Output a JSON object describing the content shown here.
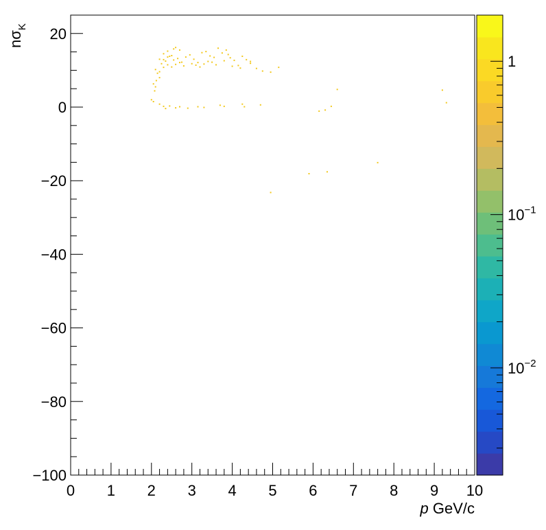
{
  "chart_data": {
    "type": "heatmap",
    "title": "",
    "xlabel": {
      "italic": "p",
      "rest": " GeV/c"
    },
    "ylabel": {
      "base": "nσ",
      "sub": "K"
    },
    "xlim": [
      0,
      10
    ],
    "ylim": [
      -100,
      25
    ],
    "x_ticks": [
      0,
      1,
      2,
      3,
      4,
      5,
      6,
      7,
      8,
      9,
      10
    ],
    "x_tick_labels": [
      "0",
      "1",
      "2",
      "3",
      "4",
      "5",
      "6",
      "7",
      "8",
      "9",
      "10"
    ],
    "y_ticks": [
      -100,
      -80,
      -60,
      -40,
      -20,
      0,
      20
    ],
    "y_tick_labels": [
      "−100",
      "−80",
      "−60",
      "−40",
      "−20",
      "0",
      "20"
    ],
    "z_scale": "log",
    "zlim": [
      0.002,
      2
    ],
    "colorbar_labels": [
      {
        "value": 1,
        "base": "1",
        "exp": ""
      },
      {
        "value": 0.1,
        "base": "10",
        "exp": "−1"
      },
      {
        "value": 0.01,
        "base": "10",
        "exp": "−2"
      }
    ],
    "colorbar_colors": [
      "#3b3ba8",
      "#2649c5",
      "#1858d8",
      "#1468e0",
      "#1679d9",
      "#1089d4",
      "#0a98d0",
      "#0fa6c8",
      "#1cb0b6",
      "#2fb8a4",
      "#4dbd8e",
      "#6ebf79",
      "#93c06a",
      "#b4bd62",
      "#d1b95c",
      "#e4b84e",
      "#f3be3b",
      "#f9cb2c",
      "#fbd924",
      "#f9e61e",
      "#f9f71a"
    ],
    "point_color": "#f2c81c",
    "points": [
      [
        2.3,
        14.5
      ],
      [
        2.4,
        15.2
      ],
      [
        2.6,
        16.2
      ],
      [
        2.7,
        15.5
      ],
      [
        2.5,
        14.0
      ],
      [
        2.2,
        13.0
      ],
      [
        2.35,
        12.5
      ],
      [
        2.45,
        13.8
      ],
      [
        2.55,
        12.8
      ],
      [
        2.65,
        13.2
      ],
      [
        2.75,
        12.2
      ],
      [
        2.85,
        13.6
      ],
      [
        2.95,
        14.2
      ],
      [
        3.05,
        13.0
      ],
      [
        3.15,
        12.1
      ],
      [
        3.25,
        14.8
      ],
      [
        3.35,
        15.1
      ],
      [
        3.45,
        13.9
      ],
      [
        3.55,
        13.5
      ],
      [
        3.65,
        16.0
      ],
      [
        3.75,
        14.7
      ],
      [
        3.85,
        15.5
      ],
      [
        3.95,
        13.4
      ],
      [
        4.05,
        12.7
      ],
      [
        4.15,
        11.3
      ],
      [
        4.25,
        13.8
      ],
      [
        4.35,
        12.9
      ],
      [
        4.45,
        11.9
      ],
      [
        4.6,
        10.5
      ],
      [
        4.75,
        9.8
      ],
      [
        4.95,
        9.5
      ],
      [
        5.15,
        10.8
      ],
      [
        2.25,
        11.8
      ],
      [
        2.3,
        10.8
      ],
      [
        2.4,
        11.5
      ],
      [
        2.5,
        10.9
      ],
      [
        2.6,
        11.6
      ],
      [
        2.7,
        12.1
      ],
      [
        2.8,
        11.2
      ],
      [
        3.0,
        11.8
      ],
      [
        3.1,
        11.4
      ],
      [
        3.2,
        10.9
      ],
      [
        3.3,
        11.7
      ],
      [
        3.5,
        12.2
      ],
      [
        3.6,
        11.5
      ],
      [
        3.8,
        12.6
      ],
      [
        4.0,
        11.1
      ],
      [
        4.2,
        10.6
      ],
      [
        2.1,
        10.2
      ],
      [
        2.15,
        9.2
      ],
      [
        2.2,
        8.0
      ],
      [
        2.12,
        7.2
      ],
      [
        2.05,
        6.3
      ],
      [
        2.1,
        5.5
      ],
      [
        2.08,
        4.4
      ],
      [
        2.0,
        2.0
      ],
      [
        2.05,
        1.5
      ],
      [
        2.2,
        0.8
      ],
      [
        2.3,
        0.2
      ],
      [
        2.35,
        -0.4
      ],
      [
        2.45,
        0.3
      ],
      [
        2.6,
        -0.2
      ],
      [
        2.7,
        0.1
      ],
      [
        2.9,
        -0.3
      ],
      [
        3.15,
        0.1
      ],
      [
        3.3,
        -0.1
      ],
      [
        3.7,
        0.5
      ],
      [
        3.8,
        0.2
      ],
      [
        4.25,
        0.8
      ],
      [
        4.3,
        0.1
      ],
      [
        4.7,
        0.6
      ],
      [
        6.15,
        -1.1
      ],
      [
        6.3,
        -0.8
      ],
      [
        6.45,
        0.2
      ],
      [
        6.6,
        4.8
      ],
      [
        9.2,
        4.6
      ],
      [
        9.3,
        1.2
      ],
      [
        5.9,
        -18.1
      ],
      [
        6.35,
        -17.6
      ],
      [
        7.6,
        -15.1
      ],
      [
        4.95,
        -23.2
      ],
      [
        2.2,
        9.6
      ],
      [
        2.3,
        12.9
      ],
      [
        2.4,
        13.6
      ],
      [
        2.55,
        15.8
      ],
      [
        3.4,
        12.4
      ],
      [
        3.9,
        14.3
      ],
      [
        4.45,
        12.4
      ]
    ]
  }
}
